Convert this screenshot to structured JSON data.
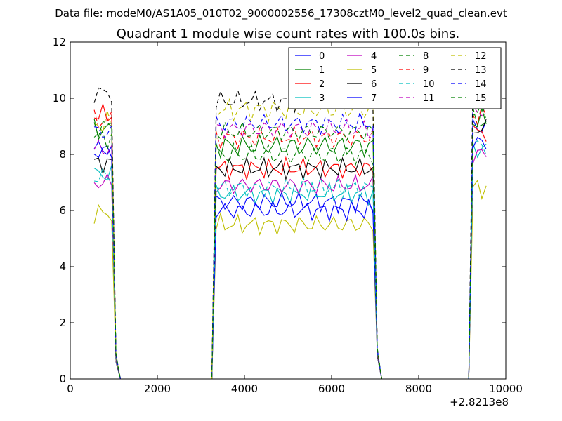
{
  "header": {
    "data_file": "Data file: modeM0/AS1A05_010T02_9000002556_17308cztM0_level2_quad_clean.evt"
  },
  "chart_data": {
    "type": "line",
    "title": "Quadrant 1 module wise count rates with 100.0s bins.",
    "xlabel": "",
    "ylabel": "",
    "xlim": [
      0,
      10000
    ],
    "ylim": [
      0,
      12
    ],
    "x_offset_label": "+2.8213e8",
    "x_tick_labels": [
      "0",
      "2000",
      "4000",
      "6000",
      "8000",
      "10000"
    ],
    "y_tick_labels": [
      "0",
      "2",
      "4",
      "6",
      "8",
      "10",
      "12"
    ],
    "grid": false,
    "legend_placement": "top-right",
    "legend_columns": 4,
    "segments": [
      {
        "x_start": 550,
        "x_end": 950,
        "step": 100
      },
      {
        "x_start": 3350,
        "x_end": 6950,
        "step": 100
      },
      {
        "x_start": 9250,
        "x_end": 9550,
        "step": 100
      }
    ],
    "drop": {
      "x": [
        1050,
        1150,
        3250,
        7050,
        7150,
        9150
      ],
      "y": [
        0.6,
        0,
        0,
        0.8,
        0,
        0
      ]
    },
    "series": [
      {
        "name": "0",
        "color": "#0000ff",
        "dash": "solid",
        "level": [
          8.2,
          6.3,
          9.0
        ],
        "amp": 0.25
      },
      {
        "name": "1",
        "color": "#008000",
        "dash": "solid",
        "level": [
          8.9,
          8.3,
          9.2
        ],
        "amp": 0.3
      },
      {
        "name": "2",
        "color": "#ff0000",
        "dash": "solid",
        "level": [
          9.4,
          7.5,
          8.8
        ],
        "amp": 0.25
      },
      {
        "name": "3",
        "color": "#00bfbf",
        "dash": "solid",
        "level": [
          7.3,
          6.6,
          8.2
        ],
        "amp": 0.25
      },
      {
        "name": "4",
        "color": "#bf00bf",
        "dash": "solid",
        "level": [
          7.0,
          6.9,
          8.0
        ],
        "amp": 0.25
      },
      {
        "name": "5",
        "color": "#bfbf00",
        "dash": "solid",
        "level": [
          5.9,
          5.5,
          6.8
        ],
        "amp": 0.25
      },
      {
        "name": "6",
        "color": "#000000",
        "dash": "solid",
        "level": [
          7.7,
          7.5,
          8.9
        ],
        "amp": 0.25
      },
      {
        "name": "7",
        "color": "#0000ff",
        "dash": "solid",
        "level": [
          8.1,
          6.0,
          8.4
        ],
        "amp": 0.25
      },
      {
        "name": "8",
        "color": "#008000",
        "dash": "dashed",
        "level": [
          8.6,
          8.0,
          9.2
        ],
        "amp": 0.3
      },
      {
        "name": "9",
        "color": "#ff0000",
        "dash": "dashed",
        "level": [
          9.2,
          8.6,
          9.4
        ],
        "amp": 0.25
      },
      {
        "name": "10",
        "color": "#00bfbf",
        "dash": "dashed",
        "level": [
          7.2,
          6.8,
          8.3
        ],
        "amp": 0.25
      },
      {
        "name": "11",
        "color": "#bf00bf",
        "dash": "dashed",
        "level": [
          8.2,
          8.9,
          9.6
        ],
        "amp": 0.25
      },
      {
        "name": "12",
        "color": "#bfbf00",
        "dash": "dashed",
        "level": [
          9.1,
          9.6,
          10.6
        ],
        "amp": 0.3
      },
      {
        "name": "13",
        "color": "#000000",
        "dash": "dashed",
        "level": [
          10.2,
          9.9,
          11.2
        ],
        "amp": 0.25
      },
      {
        "name": "14",
        "color": "#0000ff",
        "dash": "dashed",
        "level": [
          8.8,
          9.1,
          9.9
        ],
        "amp": 0.25
      },
      {
        "name": "15",
        "color": "#008000",
        "dash": "dashed",
        "level": [
          9.0,
          8.8,
          9.5
        ],
        "amp": 0.25
      }
    ]
  }
}
